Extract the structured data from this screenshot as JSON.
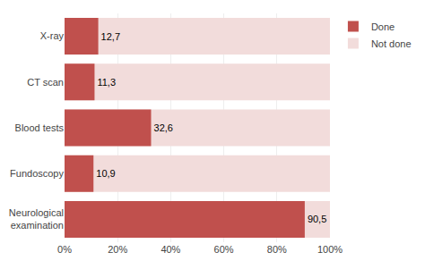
{
  "chart_data": {
    "type": "bar",
    "orientation": "horizontal",
    "stacked": false,
    "categories": [
      "Neurological\nexamination",
      "Fundoscopy",
      "Blood tests",
      "CT scan",
      "X-ray"
    ],
    "series": [
      {
        "name": "Not done",
        "color": "#f2dcdb",
        "values": [
          100,
          100,
          100,
          100,
          100
        ]
      },
      {
        "name": "Done",
        "color": "#c0504d",
        "values": [
          90.5,
          10.9,
          32.6,
          11.3,
          12.7
        ],
        "value_labels": [
          "90,5",
          "10,9",
          "32,6",
          "11,3",
          "12,7"
        ],
        "data_labels": true
      }
    ],
    "xlim": [
      0,
      100
    ],
    "xticks": [
      {
        "value": 0,
        "label": "0%"
      },
      {
        "value": 20,
        "label": "20%"
      },
      {
        "value": 40,
        "label": "40%"
      },
      {
        "value": 60,
        "label": "60%"
      },
      {
        "value": 80,
        "label": "80%"
      },
      {
        "value": 100,
        "label": "100%"
      }
    ],
    "grid": true,
    "legend": "upper right"
  }
}
